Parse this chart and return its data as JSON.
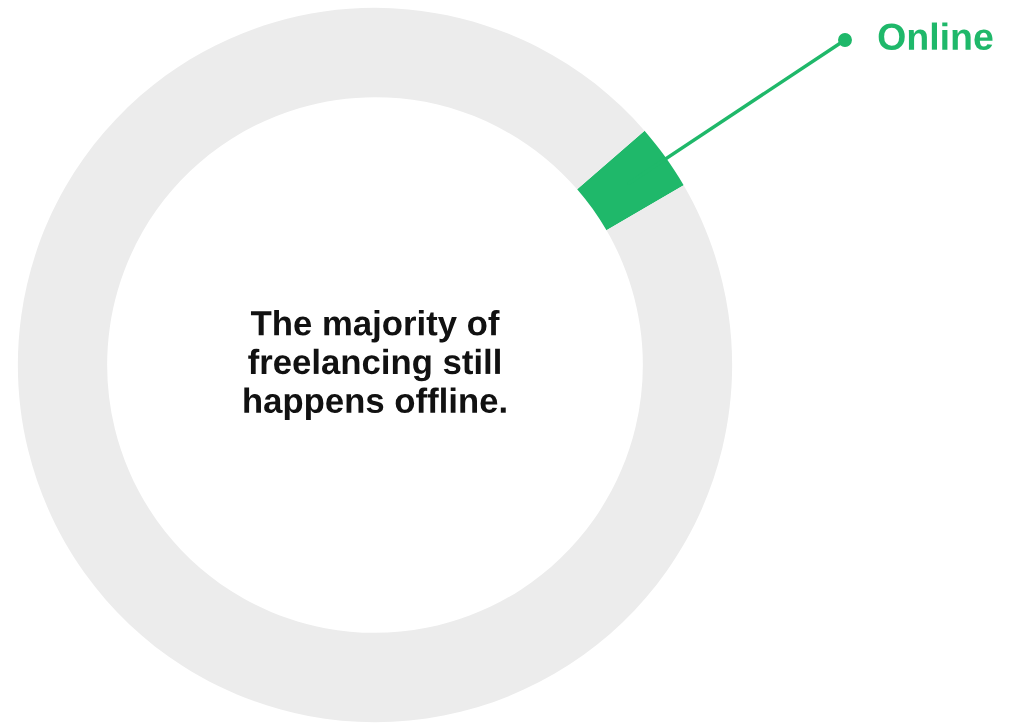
{
  "chart_data": {
    "type": "donut",
    "title": "The majority of\nfreelancing still\nhappens offline.",
    "categories": [
      "Online",
      null
    ],
    "values": [
      3,
      97
    ],
    "colors": [
      "#1fb86a",
      "#ececec"
    ]
  }
}
